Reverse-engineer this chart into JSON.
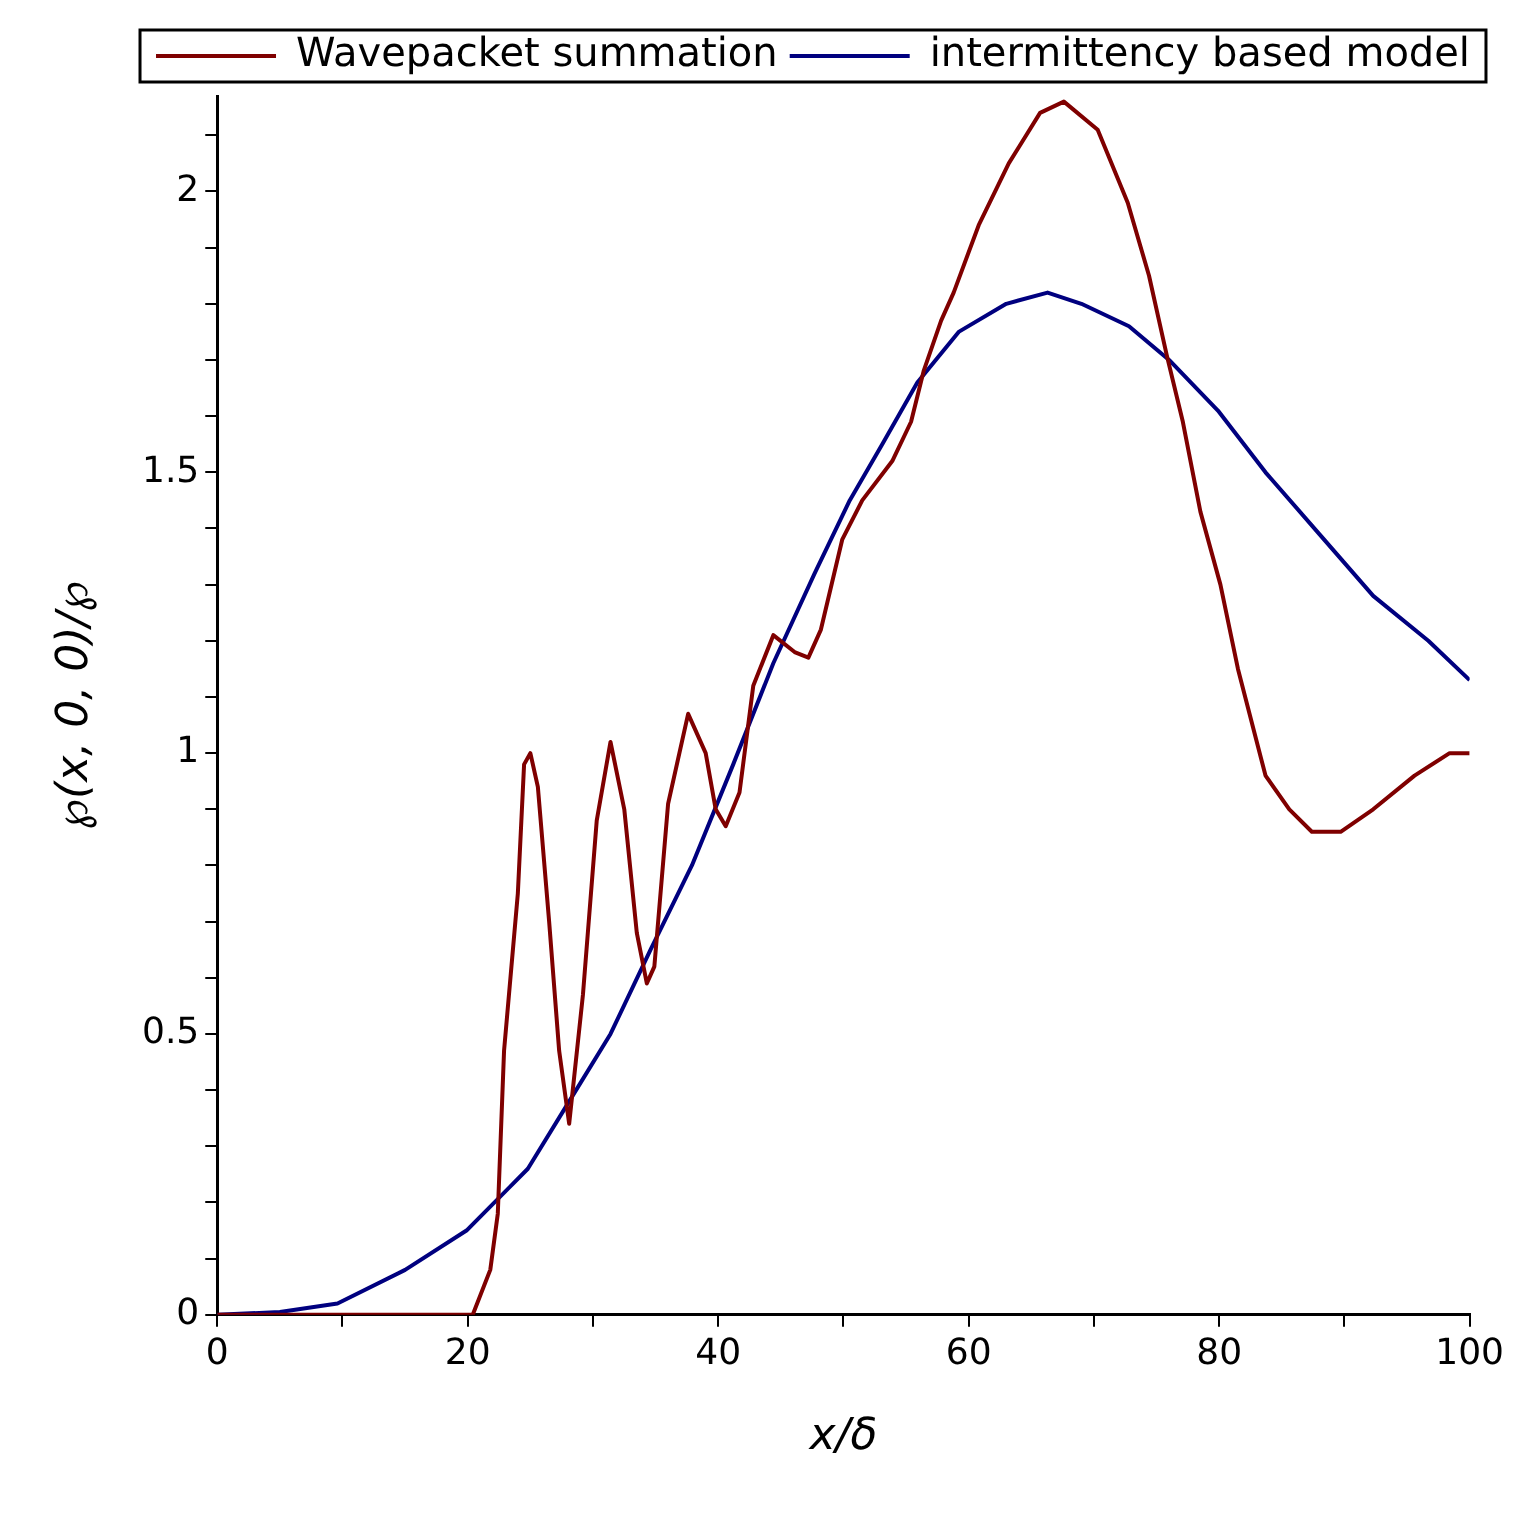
{
  "chart_data": {
    "type": "line",
    "xlabel": "x/δ",
    "ylabel": "℘(x, 0, 0)/℘",
    "xlim": [
      0,
      100
    ],
    "ylim": [
      0,
      2.17
    ],
    "xticks": [
      0,
      {
        "value": 10,
        "label": null
      },
      20,
      {
        "value": 30,
        "label": null
      },
      40,
      {
        "value": 50,
        "label": null
      },
      60,
      {
        "value": 70,
        "label": null
      },
      80,
      {
        "value": 90,
        "label": null
      },
      100
    ],
    "yticks": [
      0,
      {
        "value": 0.1,
        "label": null
      },
      {
        "value": 0.2,
        "label": null
      },
      {
        "value": 0.3,
        "label": null
      },
      {
        "value": 0.4,
        "label": null
      },
      0.5,
      {
        "value": 0.6,
        "label": null
      },
      {
        "value": 0.7,
        "label": null
      },
      {
        "value": 0.8,
        "label": null
      },
      {
        "value": 0.9,
        "label": null
      },
      1,
      {
        "value": 1.1,
        "label": null
      },
      {
        "value": 1.2,
        "label": null
      },
      {
        "value": 1.3,
        "label": null
      },
      {
        "value": 1.4,
        "label": null
      },
      1.5,
      {
        "value": 1.6,
        "label": null
      },
      {
        "value": 1.7,
        "label": null
      },
      {
        "value": 1.8,
        "label": null
      },
      {
        "value": 1.9,
        "label": null
      },
      2,
      {
        "value": 2.1,
        "label": null
      }
    ],
    "grid": false,
    "legend": "top",
    "marker": "none",
    "line_style": "solid",
    "series": [
      {
        "name": "Wavepacket summation",
        "color": "#7f0000",
        "x": [
          0,
          10,
          20.4,
          21.8,
          22.4,
          22.9,
          24.0,
          24.5,
          25.0,
          25.6,
          26.5,
          27.3,
          28.1,
          29.2,
          30.3,
          31.4,
          32.5,
          33.5,
          34.3,
          34.9,
          36.0,
          37.6,
          39.0,
          39.8,
          40.6,
          41.7,
          42.8,
          44.4,
          46.1,
          47.2,
          48.2,
          49.9,
          51.5,
          53.9,
          55.4,
          56.4,
          57.8,
          58.8,
          60.8,
          63.2,
          65.7,
          67.6,
          70.3,
          72.7,
          74.4,
          75.8,
          77.1,
          78.5,
          80.1,
          81.5,
          83.7,
          85.6,
          87.4,
          89.7,
          92.3,
          95.6,
          98.4,
          100
        ],
        "values": [
          0,
          0,
          0,
          0.08,
          0.18,
          0.47,
          0.75,
          0.98,
          1.0,
          0.94,
          0.7,
          0.47,
          0.34,
          0.57,
          0.88,
          1.02,
          0.9,
          0.68,
          0.59,
          0.62,
          0.91,
          1.07,
          1.0,
          0.9,
          0.87,
          0.93,
          1.12,
          1.21,
          1.18,
          1.17,
          1.22,
          1.38,
          1.45,
          1.52,
          1.59,
          1.68,
          1.77,
          1.82,
          1.94,
          2.05,
          2.14,
          2.16,
          2.11,
          1.98,
          1.85,
          1.71,
          1.59,
          1.43,
          1.3,
          1.15,
          0.96,
          0.9,
          0.86,
          0.86,
          0.9,
          0.96,
          1.0,
          1.0
        ]
      },
      {
        "name": "intermittency based model",
        "color": "#00007f",
        "x": [
          0,
          5,
          9.6,
          15,
          19.9,
          24.8,
          28.1,
          31.4,
          34.6,
          37.9,
          41.2,
          44.4,
          47.7,
          50.5,
          53.1,
          55.9,
          59.2,
          63,
          66.3,
          69,
          72.8,
          76,
          79.9,
          83.7,
          88,
          92.3,
          96.7,
          100
        ],
        "values": [
          0,
          0.005,
          0.02,
          0.08,
          0.15,
          0.26,
          0.38,
          0.5,
          0.65,
          0.8,
          0.98,
          1.16,
          1.32,
          1.45,
          1.55,
          1.66,
          1.75,
          1.8,
          1.82,
          1.8,
          1.76,
          1.7,
          1.61,
          1.5,
          1.39,
          1.28,
          1.2,
          1.13
        ]
      }
    ]
  }
}
